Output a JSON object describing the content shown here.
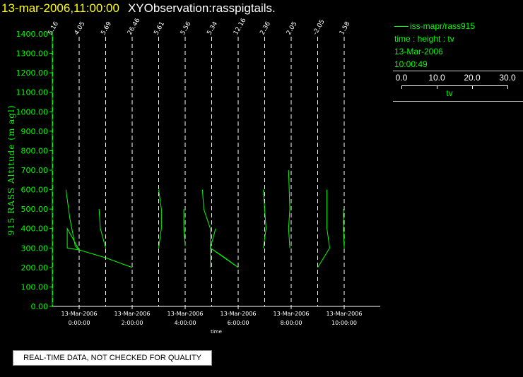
{
  "header": {
    "timestamp": "13-mar-2006,11:00:00",
    "title": "XYObservation:rasspigtails."
  },
  "legend": {
    "series_label": "iss-mapr/rass915",
    "mapping": "time : height : tv",
    "date": "13-Mar-2006",
    "time": "10:00:49",
    "colorbar": {
      "ticks": [
        "0.0",
        "10.0",
        "20.0",
        "30.0"
      ],
      "label": "tv"
    }
  },
  "notice": "REAL-TIME DATA, NOT CHECKED FOR QUALITY",
  "colors": {
    "trace": "#00ff00",
    "guide": "#ffffff",
    "title_time": "#ffff00",
    "background": "#000000"
  },
  "chart_data": {
    "type": "line",
    "ylabel": "915 RASS Altitude (m agl)",
    "xlabel": "time",
    "ylim": [
      0,
      1400
    ],
    "xlim_hours": [
      -1.0,
      11.0
    ],
    "y_ticks": [
      "0.00",
      "100.00",
      "200.00",
      "300.00",
      "400.00",
      "500.00",
      "600.00",
      "700.00",
      "800.00",
      "900.00",
      "1000.00",
      "1100.00",
      "1200.00",
      "1300.00",
      "1400.00"
    ],
    "x_ticks": [
      {
        "hour": 0,
        "date": "13-Mar-2006",
        "time": "0:00:00"
      },
      {
        "hour": 2,
        "date": "13-Mar-2006",
        "time": "2:00:00"
      },
      {
        "hour": 4,
        "date": "13-Mar-2006",
        "time": "4:00:00"
      },
      {
        "hour": 6,
        "date": "13-Mar-2006",
        "time": "6:00:00"
      },
      {
        "hour": 8,
        "date": "13-Mar-2006",
        "time": "8:00:00"
      },
      {
        "hour": 10,
        "date": "13-Mar-2006",
        "time": "10:00:00"
      }
    ],
    "profiles": [
      {
        "hour": -1.0,
        "label": "5.16",
        "points": []
      },
      {
        "hour": 0.0,
        "label": "4.05",
        "points": [
          [
            -0.5,
            600
          ],
          [
            -0.35,
            450
          ],
          [
            -0.15,
            310
          ],
          [
            0.0,
            290
          ],
          [
            -0.45,
            400
          ],
          [
            -0.45,
            300
          ],
          [
            0.0,
            290
          ],
          [
            1.0,
            250
          ],
          [
            2.0,
            200
          ]
        ]
      },
      {
        "hour": 1.0,
        "label": "5.69",
        "points": [
          [
            0.75,
            500
          ],
          [
            0.8,
            400
          ],
          [
            1.0,
            300
          ]
        ]
      },
      {
        "hour": 2.0,
        "label": "26.46",
        "points": []
      },
      {
        "hour": 3.0,
        "label": "5.61",
        "points": [
          [
            3.0,
            600
          ],
          [
            3.1,
            500
          ],
          [
            3.1,
            400
          ],
          [
            3.0,
            300
          ]
        ]
      },
      {
        "hour": 4.0,
        "label": "5.56",
        "points": [
          [
            3.95,
            500
          ],
          [
            3.95,
            400
          ],
          [
            4.0,
            310
          ]
        ]
      },
      {
        "hour": 5.0,
        "label": "5.34",
        "points": [
          [
            4.65,
            600
          ],
          [
            4.7,
            500
          ],
          [
            4.95,
            400
          ],
          [
            4.95,
            300
          ],
          [
            5.5,
            250
          ],
          [
            6.0,
            200
          ],
          [
            4.95,
            300
          ],
          [
            5.15,
            400
          ],
          [
            4.95,
            300
          ],
          [
            4.95,
            200
          ]
        ]
      },
      {
        "hour": 6.0,
        "label": "12.16",
        "points": []
      },
      {
        "hour": 7.0,
        "label": "2.36",
        "points": [
          [
            6.95,
            600
          ],
          [
            7.05,
            400
          ],
          [
            6.95,
            300
          ]
        ]
      },
      {
        "hour": 8.0,
        "label": "2.05",
        "points": [
          [
            7.9,
            700
          ],
          [
            7.95,
            500
          ],
          [
            7.9,
            400
          ],
          [
            7.95,
            300
          ]
        ]
      },
      {
        "hour": 9.0,
        "label": "-2.05",
        "points": [
          [
            9.35,
            600
          ],
          [
            9.35,
            400
          ],
          [
            9.45,
            300
          ],
          [
            9.0,
            200
          ]
        ]
      },
      {
        "hour": 10.0,
        "label": "1.58",
        "points": [
          [
            9.97,
            500
          ],
          [
            9.97,
            400
          ],
          [
            10.0,
            300
          ]
        ]
      }
    ]
  }
}
